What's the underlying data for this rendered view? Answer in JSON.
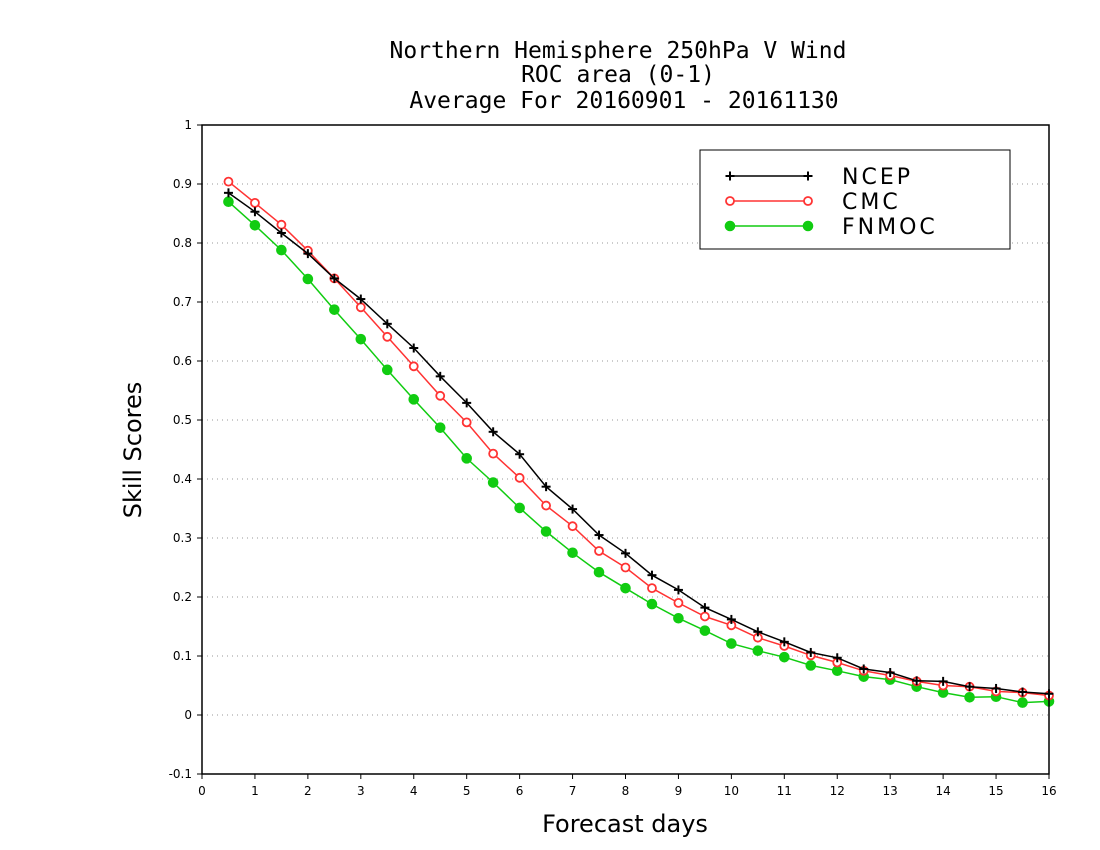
{
  "chart_data": {
    "type": "line",
    "title": [
      "Northern Hemisphere 250hPa V Wind",
      "ROC area (0-1)",
      "Average For 20160901 - 20161130"
    ],
    "xlabel": "Forecast days",
    "ylabel": "Skill Scores",
    "xlim": [
      0,
      16
    ],
    "ylim": [
      -0.1,
      1
    ],
    "x_ticks": [
      0,
      1,
      2,
      3,
      4,
      5,
      6,
      7,
      8,
      9,
      10,
      11,
      12,
      13,
      14,
      15,
      16
    ],
    "y_ticks": [
      -0.1,
      0,
      0.1,
      0.2,
      0.3,
      0.4,
      0.5,
      0.6,
      0.7,
      0.8,
      0.9,
      1
    ],
    "y_tick_labels": [
      "-0.1",
      "0",
      "0.1",
      "0.2",
      "0.3",
      "0.4",
      "0.5",
      "0.6",
      "0.7",
      "0.8",
      "0.9",
      "1"
    ],
    "grid": "horizontal dotted",
    "legend_position": "top-right",
    "x": [
      0.5,
      1.0,
      1.5,
      2.0,
      2.5,
      3.0,
      3.5,
      4.0,
      4.5,
      5.0,
      5.5,
      6.0,
      6.5,
      7.0,
      7.5,
      8.0,
      8.5,
      9.0,
      9.5,
      10.0,
      10.5,
      11.0,
      11.5,
      12.0,
      12.5,
      13.0,
      13.5,
      14.0,
      14.5,
      15.0,
      15.5,
      16.0
    ],
    "series": [
      {
        "name": "NCEP",
        "color": "#000000",
        "marker": "plus",
        "values": [
          0.885,
          0.853,
          0.817,
          0.782,
          0.74,
          0.705,
          0.663,
          0.622,
          0.574,
          0.529,
          0.48,
          0.442,
          0.387,
          0.349,
          0.305,
          0.274,
          0.237,
          0.212,
          0.182,
          0.162,
          0.141,
          0.124,
          0.106,
          0.097,
          0.078,
          0.072,
          0.058,
          0.057,
          0.048,
          0.045,
          0.039,
          0.036
        ]
      },
      {
        "name": "CMC",
        "color": "#ff3333",
        "marker": "open-circle",
        "values": [
          0.904,
          0.868,
          0.831,
          0.787,
          0.74,
          0.691,
          0.641,
          0.591,
          0.541,
          0.496,
          0.443,
          0.402,
          0.355,
          0.32,
          0.278,
          0.25,
          0.215,
          0.19,
          0.167,
          0.152,
          0.131,
          0.117,
          0.101,
          0.089,
          0.075,
          0.067,
          0.057,
          0.05,
          0.048,
          0.04,
          0.038,
          0.033
        ]
      },
      {
        "name": "FNMOC",
        "color": "#11cc11",
        "marker": "filled-circle",
        "values": [
          0.87,
          0.83,
          0.788,
          0.739,
          0.687,
          0.637,
          0.585,
          0.535,
          0.487,
          0.435,
          0.394,
          0.351,
          0.311,
          0.275,
          0.242,
          0.215,
          0.188,
          0.164,
          0.143,
          0.121,
          0.109,
          0.098,
          0.084,
          0.075,
          0.065,
          0.06,
          0.048,
          0.038,
          0.03,
          0.031,
          0.021,
          0.023
        ]
      }
    ]
  }
}
